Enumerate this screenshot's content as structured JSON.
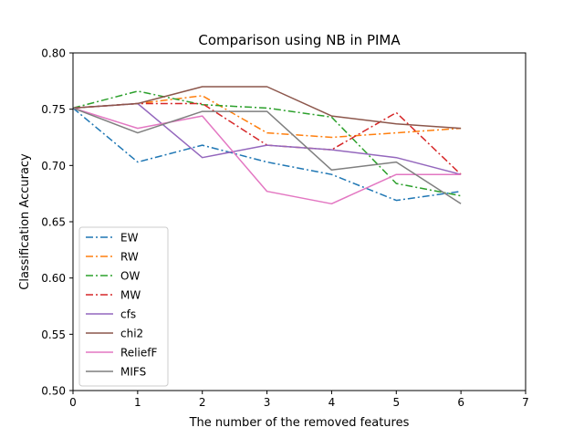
{
  "chart_data": {
    "type": "line",
    "title": "Comparison using NB in PIMA",
    "xlabel": "The number of the removed features",
    "ylabel": "Classification Accuracy",
    "xlim": [
      0,
      7
    ],
    "ylim": [
      0.5,
      0.8
    ],
    "xticks": [
      0,
      1,
      2,
      3,
      4,
      5,
      6,
      7
    ],
    "xtick_labels": [
      "0",
      "1",
      "2",
      "3",
      "4",
      "5",
      "6",
      "7"
    ],
    "yticks": [
      0.5,
      0.55,
      0.6,
      0.65,
      0.7,
      0.75,
      0.8
    ],
    "ytick_labels": [
      "0.50",
      "0.55",
      "0.60",
      "0.65",
      "0.70",
      "0.75",
      "0.80"
    ],
    "grid": false,
    "legend_position": "lower-left",
    "x": [
      0,
      1,
      2,
      3,
      4,
      5,
      6
    ],
    "series": [
      {
        "name": "EW",
        "color": "#1f77b4",
        "style": "dashdot",
        "values": [
          0.751,
          0.703,
          0.718,
          0.703,
          0.692,
          0.669,
          0.677
        ]
      },
      {
        "name": "RW",
        "color": "#ff7f0e",
        "style": "dashdot",
        "values": [
          0.751,
          0.755,
          0.762,
          0.729,
          0.725,
          0.729,
          0.733
        ]
      },
      {
        "name": "OW",
        "color": "#2ca02c",
        "style": "dashdot",
        "values": [
          0.751,
          0.766,
          0.754,
          0.751,
          0.743,
          0.684,
          0.673
        ]
      },
      {
        "name": "MW",
        "color": "#d62728",
        "style": "dashdot",
        "values": [
          0.751,
          0.755,
          0.755,
          0.718,
          0.714,
          0.747,
          0.692
        ]
      },
      {
        "name": "cfs",
        "color": "#9467bd",
        "style": "solid",
        "values": [
          0.751,
          0.755,
          0.707,
          0.718,
          0.714,
          0.707,
          0.692
        ]
      },
      {
        "name": "chi2",
        "color": "#8c564b",
        "style": "solid",
        "values": [
          0.751,
          0.755,
          0.77,
          0.77,
          0.744,
          0.737,
          0.733
        ]
      },
      {
        "name": "ReliefF",
        "color": "#e377c2",
        "style": "solid",
        "values": [
          0.751,
          0.733,
          0.744,
          0.677,
          0.666,
          0.692,
          0.692
        ]
      },
      {
        "name": "MIFS",
        "color": "#7f7f7f",
        "style": "solid",
        "values": [
          0.751,
          0.729,
          0.748,
          0.748,
          0.696,
          0.703,
          0.666
        ]
      }
    ]
  }
}
